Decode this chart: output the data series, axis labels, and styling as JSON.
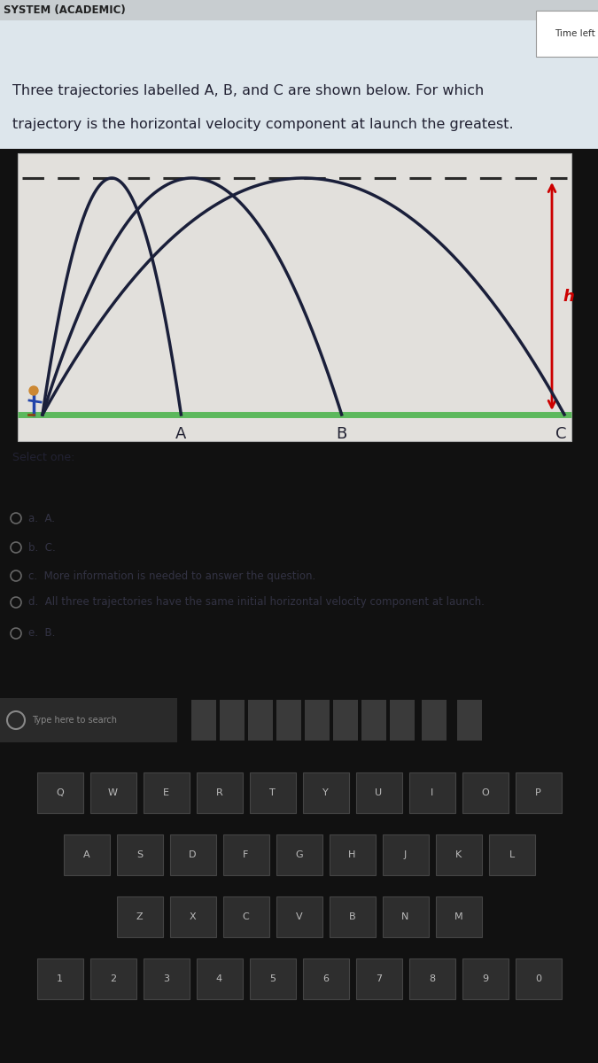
{
  "title_line1": "Three trajectories labelled A, B, and C are shown below. For which",
  "title_line2": "trajectory is the horizontal velocity component at launch the greatest.",
  "header": "SYSTEM (ACADEMIC)",
  "time_left_label": "Time left",
  "page_bg": "#f0ece4",
  "content_bg": "#cdd8e0",
  "diagram_bg": "#e8e8e4",
  "ground_color": "#5cb85c",
  "trajectory_color": "#1a1f3a",
  "dashed_color": "#2a2a2a",
  "arrow_color": "#cc0000",
  "label_A": "A",
  "label_B": "B",
  "label_C": "C",
  "label_h": "h",
  "select_one": "Select one:",
  "option_a": "a.  A.",
  "option_b": "b.  C.",
  "option_c": "c.  More information is needed to answer the question.",
  "option_d": "d.  All three trajectories have the same initial horizontal velocity component at launch.",
  "option_e": "e.  B.",
  "font_color": "#222233",
  "options_font_color": "#333344",
  "dark_bg": "#111111",
  "taskbar_bg": "#1c1c1c",
  "key_bg": "#2e2e2e",
  "key_border": "#444444",
  "key_text": "#bbbbbb",
  "search_bg": "#252525",
  "search_text": "#888888",
  "icon_color": "#555555"
}
